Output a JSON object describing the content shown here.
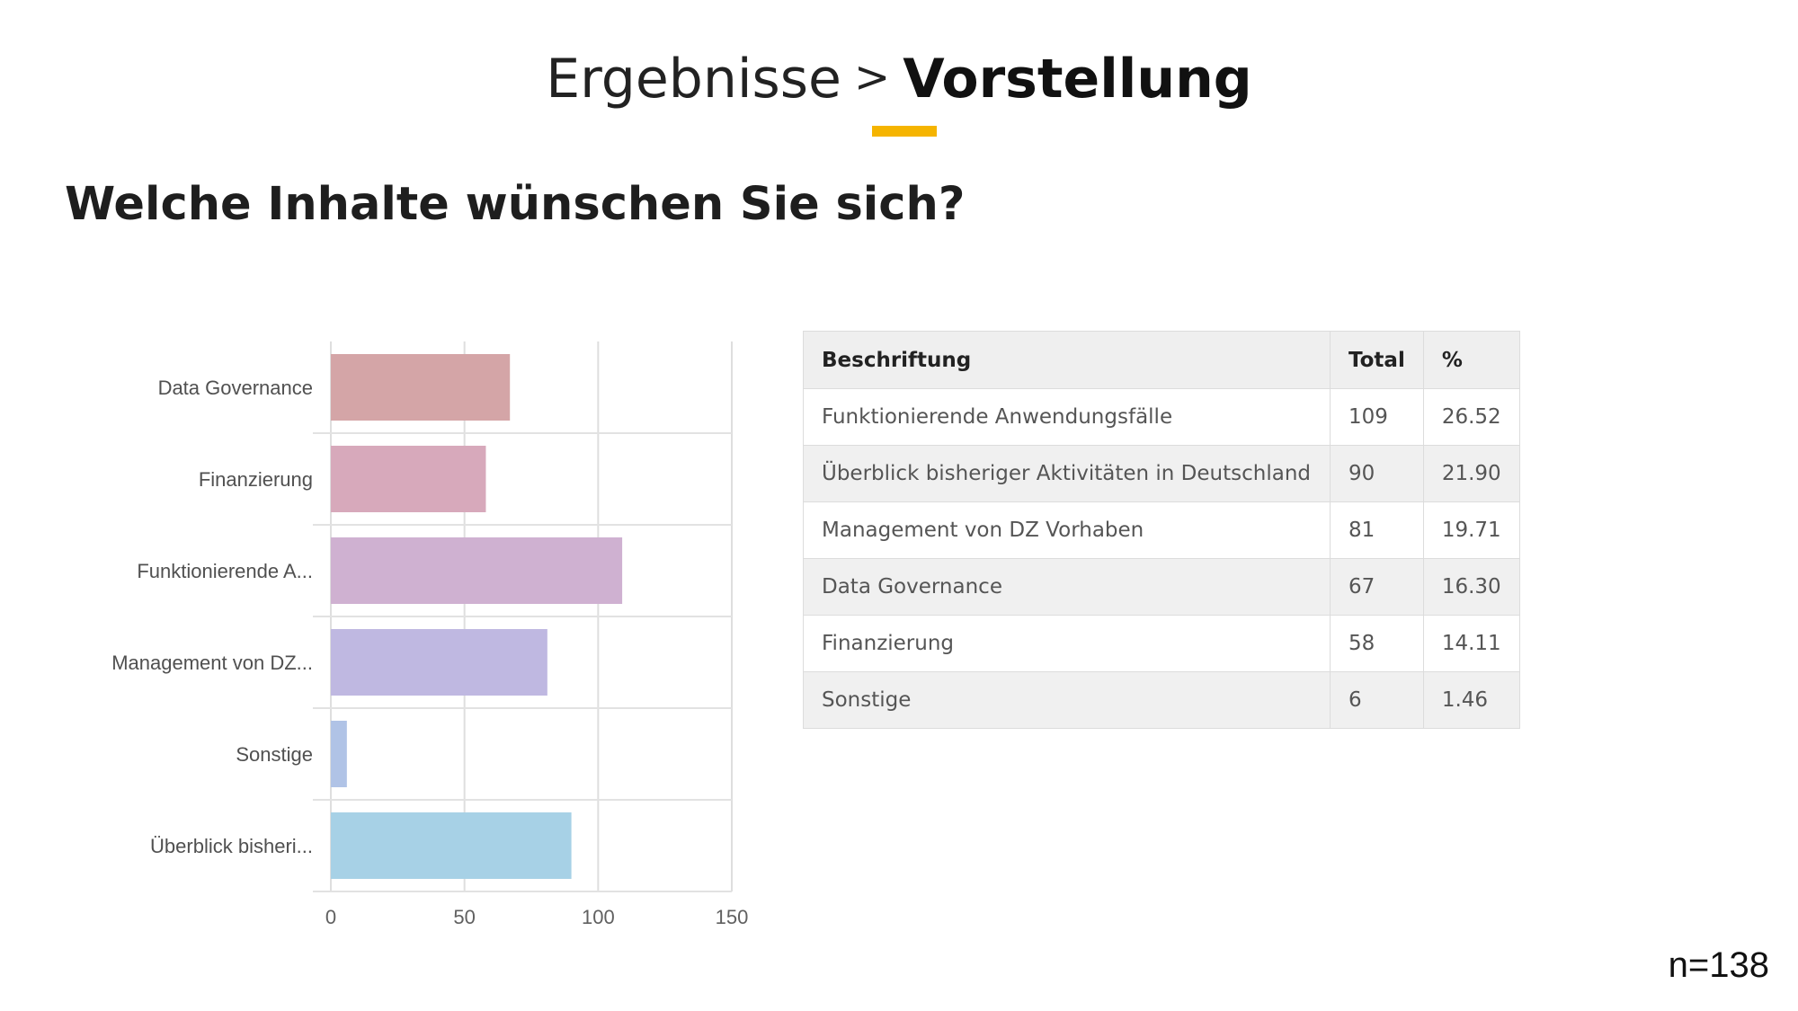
{
  "header": {
    "section": "Ergebnisse",
    "separator": ">",
    "subsection": "Vorstellung",
    "accent_color": "#f5b400"
  },
  "question": "Welche Inhalte wünschen Sie sich?",
  "chart_data": {
    "type": "bar",
    "orientation": "horizontal",
    "categories": [
      "Data Governance",
      "Finanzierung",
      "Funktionierende A...",
      "Management von DZ...",
      "Sonstige",
      "Überblick bisheri..."
    ],
    "values": [
      67,
      58,
      109,
      81,
      6,
      90
    ],
    "colors": [
      "#d4a5a7",
      "#d7a9bb",
      "#cfb1d1",
      "#bfb8e1",
      "#b0c3e6",
      "#a7d1e6"
    ],
    "xlim": [
      0,
      150
    ],
    "xticks": [
      0,
      50,
      100,
      150
    ],
    "grid": true,
    "legend": "none"
  },
  "table": {
    "headers": [
      "Beschriftung",
      "Total",
      "%"
    ],
    "rows": [
      [
        "Funktionierende Anwendungsfälle",
        "109",
        "26.52"
      ],
      [
        "Überblick bisheriger Aktivitäten in Deutschland",
        "90",
        "21.90"
      ],
      [
        "Management von DZ Vorhaben",
        "81",
        "19.71"
      ],
      [
        "Data Governance",
        "67",
        "16.30"
      ],
      [
        "Finanzierung",
        "58",
        "14.11"
      ],
      [
        "Sonstige",
        "6",
        "1.46"
      ]
    ]
  },
  "footnote": "n=138"
}
